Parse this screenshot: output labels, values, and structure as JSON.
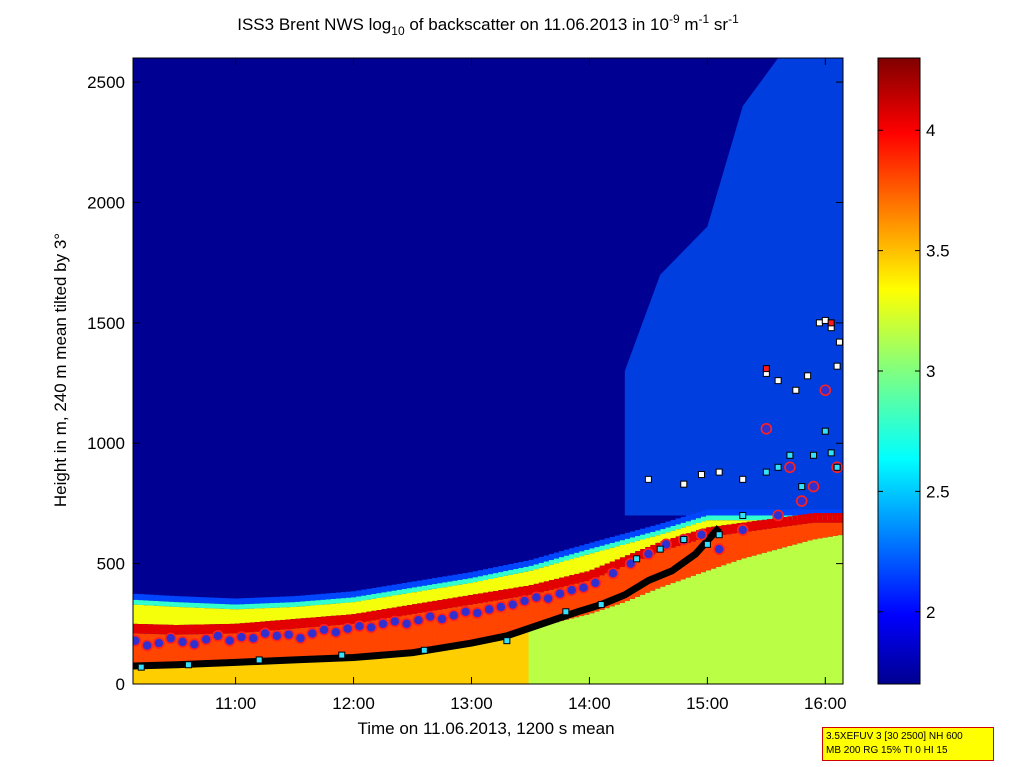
{
  "chart_data": {
    "type": "heatmap",
    "title": {
      "text_1": "ISS3 Brent NWS log",
      "sub_1": "10",
      "text_2": " of backscatter on 11.06.2013 in 10",
      "sup_1": "-9",
      "text_3": " m",
      "sup_2": "-1",
      "text_4": " sr",
      "sup_3": "-1"
    },
    "xlabel": "Time on 11.06.2013, 1200 s mean",
    "ylabel": "Height in m, 240 m mean tilted by 3°",
    "x_unit": "hours",
    "xlim": [
      10.13,
      16.15
    ],
    "ylim": [
      0,
      2600
    ],
    "x_ticks": [
      {
        "value": 11,
        "label": "11:00"
      },
      {
        "value": 12,
        "label": "12:00"
      },
      {
        "value": 13,
        "label": "13:00"
      },
      {
        "value": 14,
        "label": "14:00"
      },
      {
        "value": 15,
        "label": "15:00"
      },
      {
        "value": 16,
        "label": "16:00"
      }
    ],
    "y_ticks": [
      {
        "value": 0,
        "label": "0"
      },
      {
        "value": 500,
        "label": "500"
      },
      {
        "value": 1000,
        "label": "1000"
      },
      {
        "value": 1500,
        "label": "1500"
      },
      {
        "value": 2000,
        "label": "2000"
      },
      {
        "value": 2500,
        "label": "2500"
      }
    ],
    "colorbar": {
      "colormap": "jet",
      "clim": [
        1.7,
        4.3
      ],
      "ticks": [
        {
          "value": 2,
          "label": "2"
        },
        {
          "value": 2.5,
          "label": "2.5"
        },
        {
          "value": 3,
          "label": "3"
        },
        {
          "value": 3.5,
          "label": "3.5"
        },
        {
          "value": 4,
          "label": "4"
        }
      ]
    },
    "background_value": 1.75,
    "layer_profile": {
      "time": [
        10.13,
        10.5,
        11.0,
        11.5,
        12.0,
        12.5,
        13.0,
        13.5,
        14.0,
        14.3,
        14.6,
        15.0,
        15.3,
        15.6,
        15.9,
        16.15
      ],
      "aerosol_top_m": [
        350,
        340,
        330,
        340,
        360,
        400,
        440,
        490,
        560,
        600,
        640,
        700,
        700,
        700,
        700,
        700
      ],
      "mixing_top_m": [
        240,
        235,
        240,
        260,
        280,
        320,
        360,
        400,
        460,
        520,
        580,
        640,
        660,
        680,
        700,
        700
      ],
      "red_band_bottom_m": [
        80,
        80,
        90,
        100,
        110,
        130,
        180,
        230,
        290,
        340,
        400,
        470,
        520,
        560,
        600,
        620
      ]
    },
    "cloud_region": {
      "time": [
        14.3,
        14.6,
        15.0,
        15.3,
        15.6,
        15.9,
        16.15
      ],
      "top_m": [
        1300,
        1700,
        1900,
        2400,
        2600,
        2600,
        2600
      ],
      "base_m": [
        700,
        700,
        700,
        700,
        700,
        700,
        700
      ]
    },
    "series": [
      {
        "marker": "black thick line",
        "x": [
          10.13,
          10.5,
          11.0,
          11.5,
          12.0,
          12.5,
          13.0,
          13.3,
          13.6,
          13.9,
          14.1,
          14.3,
          14.5,
          14.7,
          14.9,
          15.1
        ],
        "y": [
          75,
          80,
          90,
          100,
          110,
          130,
          170,
          200,
          250,
          300,
          330,
          370,
          430,
          470,
          540,
          650
        ]
      },
      {
        "marker": "purple circle with red edge",
        "x": [
          10.15,
          10.25,
          10.35,
          10.45,
          10.55,
          10.65,
          10.75,
          10.85,
          10.95,
          11.05,
          11.15,
          11.25,
          11.35,
          11.45,
          11.55,
          11.65,
          11.75,
          11.85,
          11.95,
          12.05,
          12.15,
          12.25,
          12.35,
          12.45,
          12.55,
          12.65,
          12.75,
          12.85,
          12.95,
          13.05,
          13.15,
          13.25,
          13.35,
          13.45,
          13.55,
          13.65,
          13.75,
          13.85,
          13.95,
          14.05,
          14.2,
          14.35,
          14.5,
          14.65,
          14.8,
          14.95,
          15.1,
          15.3,
          15.5,
          15.6,
          15.7,
          15.8,
          15.9,
          16.0,
          16.1
        ],
        "y": [
          180,
          160,
          170,
          190,
          175,
          165,
          185,
          200,
          180,
          195,
          190,
          210,
          200,
          205,
          190,
          210,
          225,
          215,
          230,
          240,
          235,
          250,
          260,
          250,
          265,
          280,
          270,
          285,
          300,
          295,
          310,
          320,
          330,
          345,
          360,
          355,
          375,
          390,
          400,
          420,
          460,
          500,
          540,
          580,
          600,
          620,
          560,
          640,
          1060,
          700,
          900,
          760,
          820,
          1220,
          900
        ]
      },
      {
        "marker": "cyan square",
        "x": [
          10.2,
          10.6,
          11.2,
          11.9,
          12.6,
          13.3,
          13.8,
          14.1,
          14.4,
          14.6,
          14.8,
          15.0,
          15.1,
          15.3,
          15.5,
          15.6,
          15.7,
          15.8,
          15.9,
          16.0,
          16.05,
          16.1
        ],
        "y": [
          70,
          80,
          100,
          120,
          140,
          180,
          300,
          330,
          520,
          560,
          600,
          580,
          620,
          700,
          880,
          900,
          950,
          820,
          950,
          1050,
          960,
          900
        ]
      },
      {
        "marker": "white square",
        "x": [
          14.5,
          14.8,
          14.95,
          15.1,
          15.3,
          15.5,
          15.6,
          15.75,
          15.85,
          15.95,
          16.0,
          16.05,
          16.1,
          16.12
        ],
        "y": [
          850,
          830,
          870,
          880,
          850,
          1290,
          1260,
          1220,
          1280,
          1500,
          1510,
          1480,
          1320,
          1420
        ]
      },
      {
        "marker": "red square",
        "x": [
          15.5,
          16.05
        ],
        "y": [
          1310,
          1500
        ]
      }
    ]
  },
  "info_box": {
    "line1": "3.5XEFUV 3 [30 2500] NH 600",
    "line2": "MB 200 RG 15% TI 0 HI 15"
  }
}
